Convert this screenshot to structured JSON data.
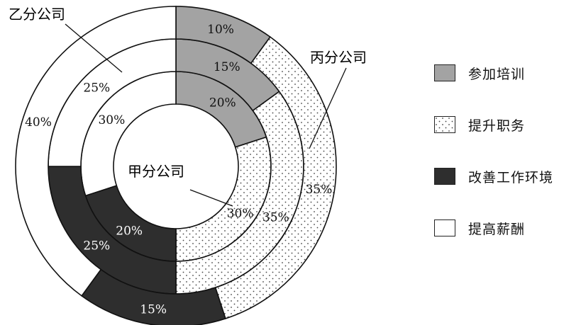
{
  "chart_data": {
    "type": "pie",
    "title": "",
    "rings": [
      {
        "name": "甲分公司",
        "slices": [
          {
            "category": "参加培训",
            "value": 20,
            "label": "20%"
          },
          {
            "category": "提升职务",
            "value": 30,
            "label": "30%"
          },
          {
            "category": "改善工作环境",
            "value": 20,
            "label": "20%"
          },
          {
            "category": "提高薪酬",
            "value": 30,
            "label": "30%"
          }
        ]
      },
      {
        "name": "乙分公司",
        "slices": [
          {
            "category": "参加培训",
            "value": 15,
            "label": "15%"
          },
          {
            "category": "提升职务",
            "value": 35,
            "label": "35%"
          },
          {
            "category": "改善工作环境",
            "value": 25,
            "label": "25%"
          },
          {
            "category": "提高薪酬",
            "value": 25,
            "label": "25%"
          }
        ]
      },
      {
        "name": "丙分公司",
        "slices": [
          {
            "category": "参加培训",
            "value": 10,
            "label": "10%"
          },
          {
            "category": "提升职务",
            "value": 35,
            "label": "35%"
          },
          {
            "category": "改善工作环境",
            "value": 15,
            "label": "15%"
          },
          {
            "category": "提高薪酬",
            "value": 40,
            "label": "40%"
          }
        ]
      }
    ],
    "legend": {
      "position": "right",
      "entries": [
        {
          "label": "参加培训",
          "color": "#a3a3a3",
          "pattern": "solid"
        },
        {
          "label": "提升职务",
          "color": "#ffffff",
          "pattern": "dots"
        },
        {
          "label": "改善工作环境",
          "color": "#2e2e2e",
          "pattern": "solid"
        },
        {
          "label": "提高薪酬",
          "color": "#ffffff",
          "pattern": "solid"
        }
      ]
    }
  },
  "annotations": {
    "jia": "甲分公司",
    "yi": "乙分公司",
    "bing": "丙分公司"
  }
}
